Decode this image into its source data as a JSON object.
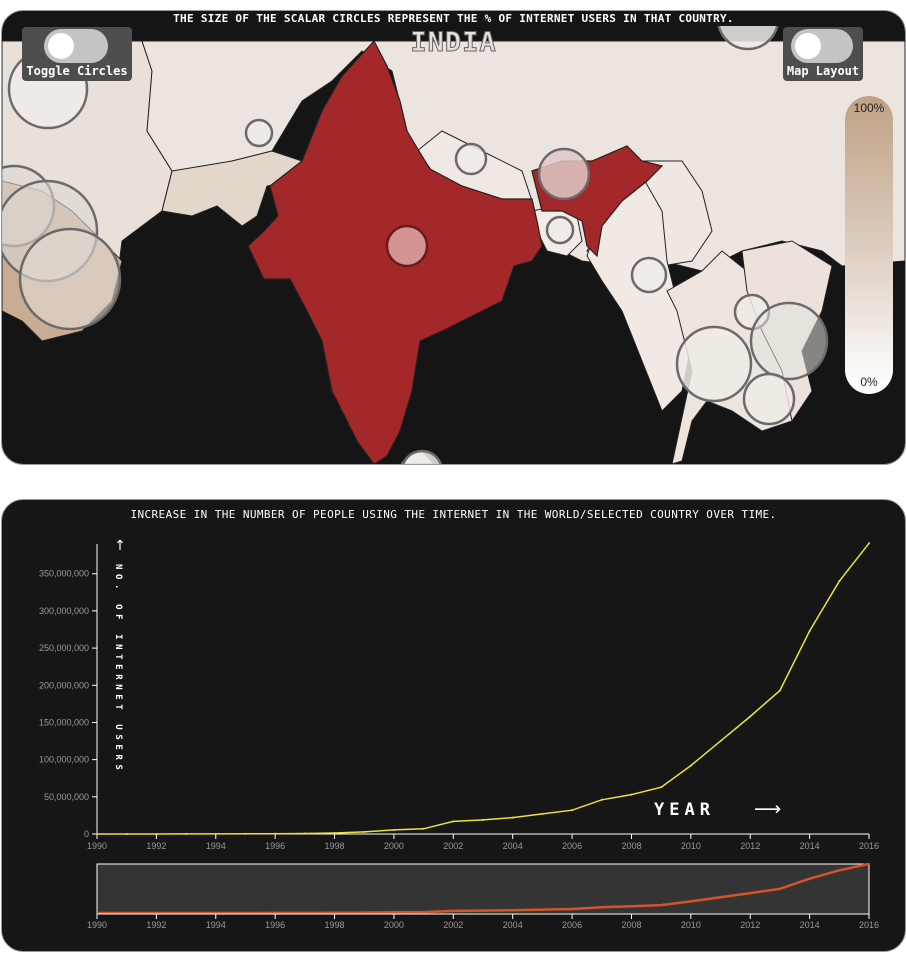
{
  "map": {
    "caption": "THE SIZE OF THE SCALAR CIRCLES REPRESENT THE % OF INTERNET USERS IN THAT COUNTRY.",
    "selected_country": "INDIA",
    "toggle_circles_label": "Toggle Circles",
    "map_layout_label": "Map Layout",
    "legend_max": "100%",
    "legend_min": "0%",
    "colors": {
      "ocean": "#151515",
      "selected": "#a4282a",
      "land": "#ece3dd",
      "circle_stroke": "#6a6a6a"
    }
  },
  "chart": {
    "caption": "INCREASE IN THE NUMBER OF PEOPLE USING THE INTERNET IN THE WORLD/SELECTED COUNTRY OVER TIME.",
    "y_axis_label": "NO. OF INTERNET USERS",
    "x_axis_label": "YEAR"
  },
  "chart_data": {
    "type": "line",
    "title": "INCREASE IN THE NUMBER OF PEOPLE USING THE INTERNET IN THE WORLD/SELECTED COUNTRY OVER TIME.",
    "xlabel": "YEAR",
    "ylabel": "NO. OF INTERNET USERS",
    "xlim": [
      1990,
      2016
    ],
    "ylim": [
      0,
      390000000
    ],
    "x_ticks": [
      1990,
      1992,
      1994,
      1996,
      1998,
      2000,
      2002,
      2004,
      2006,
      2008,
      2010,
      2012,
      2014,
      2016
    ],
    "y_ticks": [
      0,
      50000000,
      100000000,
      150000000,
      200000000,
      250000000,
      300000000,
      350000000
    ],
    "x_tick_labels": [
      "1990",
      "1992",
      "1994",
      "1996",
      "1998",
      "2000",
      "2002",
      "2004",
      "2006",
      "2008",
      "2010",
      "2012",
      "2014",
      "2016"
    ],
    "y_tick_labels": [
      "0",
      "50,000,000",
      "100,000,000",
      "150,000,000",
      "200,000,000",
      "250,000,000",
      "300,000,000",
      "350,000,000"
    ],
    "line_color": "#e9e23a",
    "brush_color": "#d4542a",
    "series": [
      {
        "x": [
          1990,
          1991,
          1992,
          1993,
          1994,
          1995,
          1996,
          1997,
          1998,
          1999,
          2000,
          2001,
          2002,
          2003,
          2004,
          2005,
          2006,
          2007,
          2008,
          2009,
          2010,
          2011,
          2012,
          2013,
          2014,
          2015,
          2016
        ],
        "values": [
          0,
          0,
          0,
          100000,
          150000,
          250000,
          450000,
          700000,
          1400000,
          2800000,
          5500000,
          7000000,
          17000000,
          19000000,
          22000000,
          27000000,
          32000000,
          46000000,
          53000000,
          63000000,
          92000000,
          125000000,
          158000000,
          193000000,
          273000000,
          340000000,
          391000000
        ]
      }
    ]
  }
}
